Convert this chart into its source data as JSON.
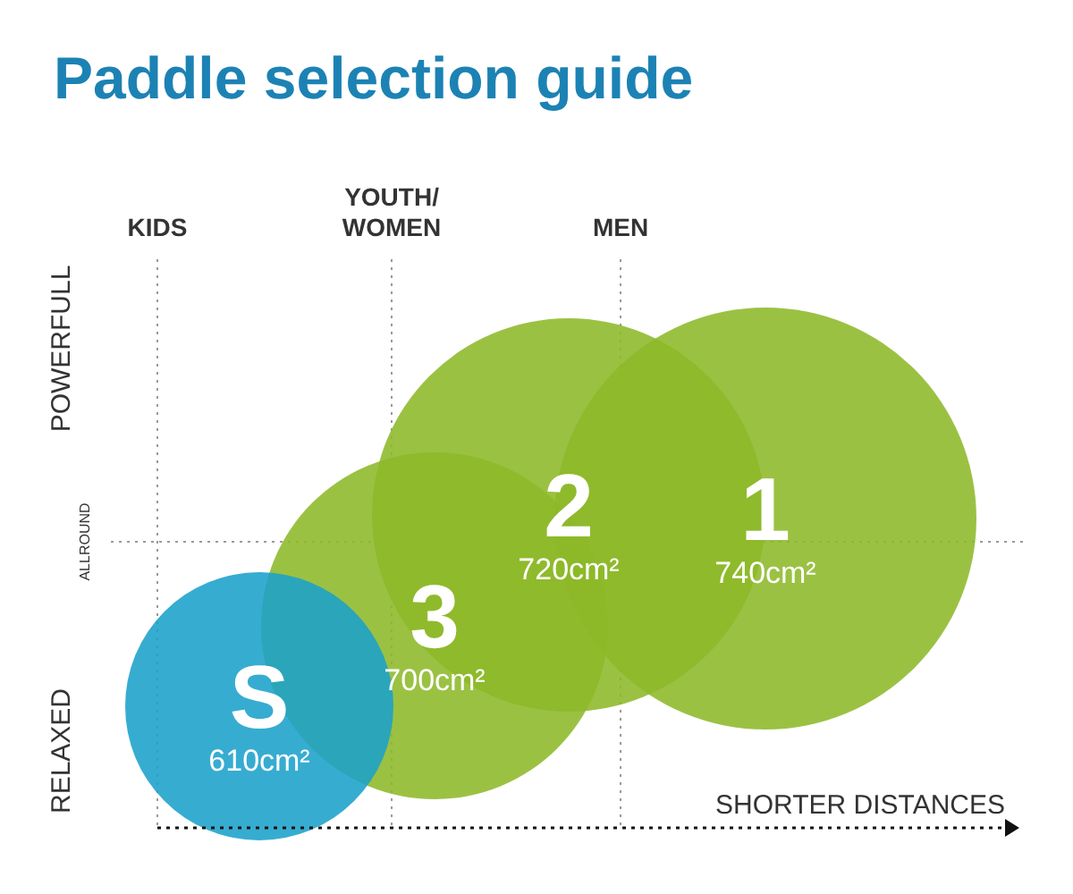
{
  "chart_data": {
    "type": "other",
    "title": "Paddle selection guide",
    "xlabel": "SHORTER DISTANCES",
    "categories": [
      "S",
      "3",
      "2",
      "1"
    ],
    "values": [
      610,
      700,
      720,
      740
    ],
    "value_labels": [
      "610cm²",
      "700cm²",
      "720cm²",
      "740cm²"
    ],
    "colors": [
      "#1ba0cb",
      "#8db829",
      "#8db829",
      "#8db829"
    ],
    "annotations": [
      "KIDS",
      "YOUTH/WOMEN",
      "MEN",
      "POWERFULL",
      "ALLROUND",
      "RELAXED"
    ],
    "legend": false
  }
}
